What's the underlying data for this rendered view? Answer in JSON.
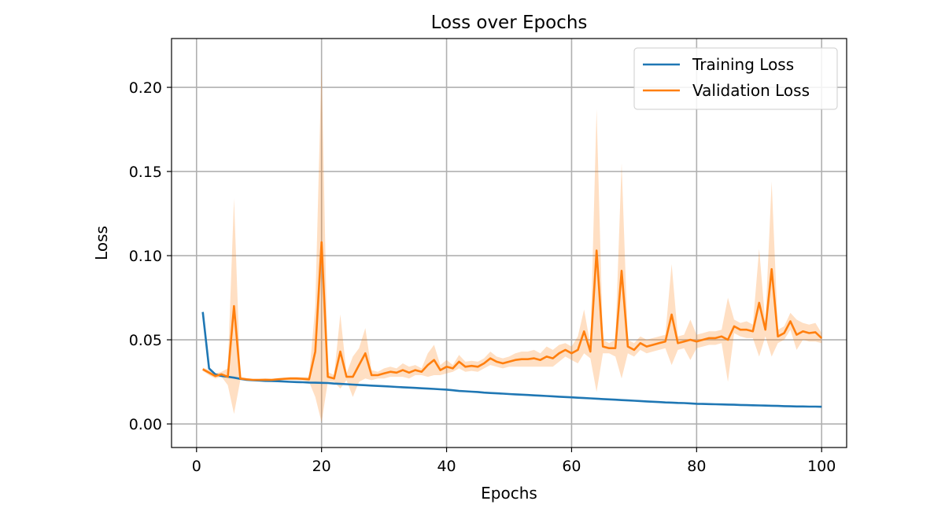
{
  "chart_data": {
    "type": "line",
    "title": "Loss over Epochs",
    "xlabel": "Epochs",
    "ylabel": "Loss",
    "xlim": [
      -4,
      104
    ],
    "ylim": [
      -0.014,
      0.229
    ],
    "xticks": [
      0,
      20,
      40,
      60,
      80,
      100
    ],
    "xtick_labels": [
      "0",
      "20",
      "40",
      "60",
      "80",
      "100"
    ],
    "yticks": [
      0.0,
      0.05,
      0.1,
      0.15,
      0.2
    ],
    "ytick_labels": [
      "0.00",
      "0.05",
      "0.10",
      "0.15",
      "0.20"
    ],
    "grid": true,
    "legend": "top-right",
    "x": [
      1,
      2,
      3,
      4,
      5,
      6,
      7,
      8,
      9,
      10,
      11,
      12,
      13,
      14,
      15,
      16,
      17,
      18,
      19,
      20,
      21,
      22,
      23,
      24,
      25,
      26,
      27,
      28,
      29,
      30,
      31,
      32,
      33,
      34,
      35,
      36,
      37,
      38,
      39,
      40,
      41,
      42,
      43,
      44,
      45,
      46,
      47,
      48,
      49,
      50,
      51,
      52,
      53,
      54,
      55,
      56,
      57,
      58,
      59,
      60,
      61,
      62,
      63,
      64,
      65,
      66,
      67,
      68,
      69,
      70,
      71,
      72,
      73,
      74,
      75,
      76,
      77,
      78,
      79,
      80,
      81,
      82,
      83,
      84,
      85,
      86,
      87,
      88,
      89,
      90,
      91,
      92,
      93,
      94,
      95,
      96,
      97,
      98,
      99,
      100
    ],
    "series": [
      {
        "name": "Training Loss",
        "color": "#1f77b4",
        "values": [
          0.0665,
          0.033,
          0.0295,
          0.0285,
          0.028,
          0.0275,
          0.0268,
          0.0262,
          0.026,
          0.0258,
          0.0256,
          0.0255,
          0.0254,
          0.0252,
          0.025,
          0.0249,
          0.0248,
          0.0246,
          0.0245,
          0.0244,
          0.0243,
          0.024,
          0.0238,
          0.0236,
          0.0234,
          0.0232,
          0.023,
          0.0228,
          0.0226,
          0.0224,
          0.0222,
          0.022,
          0.0218,
          0.0216,
          0.0214,
          0.0212,
          0.021,
          0.0208,
          0.0206,
          0.0204,
          0.02,
          0.0196,
          0.0194,
          0.0192,
          0.019,
          0.0186,
          0.0184,
          0.0182,
          0.018,
          0.0178,
          0.0176,
          0.0174,
          0.0172,
          0.017,
          0.0168,
          0.0166,
          0.0164,
          0.0162,
          0.016,
          0.0158,
          0.0156,
          0.0154,
          0.0152,
          0.015,
          0.0148,
          0.0146,
          0.0144,
          0.0142,
          0.014,
          0.0138,
          0.0136,
          0.0134,
          0.0132,
          0.013,
          0.0128,
          0.0127,
          0.0125,
          0.0124,
          0.0122,
          0.012,
          0.0119,
          0.0118,
          0.0117,
          0.0116,
          0.0115,
          0.0114,
          0.0113,
          0.0112,
          0.0111,
          0.011,
          0.0109,
          0.0108,
          0.0107,
          0.0106,
          0.0105,
          0.0104,
          0.0104,
          0.0103,
          0.0103,
          0.0102
        ]
      },
      {
        "name": "Validation Loss",
        "color": "#ff7f0e",
        "values": [
          0.0325,
          0.0305,
          0.0285,
          0.0295,
          0.028,
          0.07,
          0.027,
          0.0265,
          0.0262,
          0.0262,
          0.0263,
          0.0262,
          0.0265,
          0.0268,
          0.027,
          0.027,
          0.0268,
          0.0265,
          0.043,
          0.108,
          0.028,
          0.027,
          0.043,
          0.028,
          0.028,
          0.035,
          0.042,
          0.029,
          0.029,
          0.03,
          0.031,
          0.0305,
          0.032,
          0.0305,
          0.032,
          0.031,
          0.035,
          0.038,
          0.032,
          0.034,
          0.033,
          0.037,
          0.034,
          0.0345,
          0.034,
          0.036,
          0.039,
          0.037,
          0.036,
          0.037,
          0.038,
          0.0385,
          0.0385,
          0.039,
          0.038,
          0.04,
          0.039,
          0.042,
          0.044,
          0.042,
          0.044,
          0.055,
          0.043,
          0.103,
          0.046,
          0.045,
          0.045,
          0.091,
          0.046,
          0.044,
          0.048,
          0.046,
          0.047,
          0.048,
          0.049,
          0.065,
          0.048,
          0.049,
          0.05,
          0.049,
          0.05,
          0.051,
          0.051,
          0.052,
          0.05,
          0.058,
          0.056,
          0.056,
          0.055,
          0.072,
          0.056,
          0.092,
          0.052,
          0.054,
          0.061,
          0.053,
          0.055,
          0.054,
          0.0545,
          0.051
        ]
      }
    ],
    "validation_band": {
      "color": "#ff7f0e",
      "opacity": 0.25,
      "upper": [
        0.0335,
        0.032,
        0.03,
        0.031,
        0.033,
        0.134,
        0.028,
        0.0272,
        0.0268,
        0.0268,
        0.0268,
        0.0268,
        0.0272,
        0.0275,
        0.028,
        0.028,
        0.0278,
        0.028,
        0.07,
        0.214,
        0.031,
        0.029,
        0.065,
        0.03,
        0.04,
        0.045,
        0.057,
        0.032,
        0.031,
        0.033,
        0.034,
        0.033,
        0.036,
        0.034,
        0.035,
        0.033,
        0.042,
        0.047,
        0.035,
        0.038,
        0.035,
        0.041,
        0.037,
        0.0375,
        0.037,
        0.039,
        0.043,
        0.04,
        0.039,
        0.04,
        0.042,
        0.043,
        0.043,
        0.044,
        0.042,
        0.046,
        0.044,
        0.047,
        0.048,
        0.046,
        0.052,
        0.068,
        0.047,
        0.187,
        0.05,
        0.048,
        0.05,
        0.155,
        0.05,
        0.048,
        0.052,
        0.05,
        0.051,
        0.052,
        0.053,
        0.095,
        0.052,
        0.053,
        0.062,
        0.053,
        0.054,
        0.055,
        0.055,
        0.056,
        0.075,
        0.062,
        0.06,
        0.061,
        0.059,
        0.104,
        0.06,
        0.144,
        0.056,
        0.058,
        0.066,
        0.062,
        0.06,
        0.059,
        0.06,
        0.054
      ],
      "lower": [
        0.0315,
        0.029,
        0.027,
        0.028,
        0.023,
        0.006,
        0.026,
        0.0258,
        0.0256,
        0.0256,
        0.0258,
        0.0256,
        0.0258,
        0.0261,
        0.026,
        0.026,
        0.0258,
        0.025,
        0.016,
        0.001,
        0.025,
        0.025,
        0.021,
        0.026,
        0.016,
        0.025,
        0.027,
        0.026,
        0.027,
        0.027,
        0.028,
        0.028,
        0.028,
        0.027,
        0.029,
        0.029,
        0.028,
        0.029,
        0.029,
        0.03,
        0.031,
        0.033,
        0.031,
        0.0315,
        0.031,
        0.033,
        0.035,
        0.034,
        0.033,
        0.034,
        0.034,
        0.034,
        0.034,
        0.034,
        0.034,
        0.034,
        0.034,
        0.037,
        0.04,
        0.038,
        0.036,
        0.042,
        0.039,
        0.019,
        0.042,
        0.042,
        0.04,
        0.027,
        0.042,
        0.04,
        0.044,
        0.042,
        0.043,
        0.044,
        0.045,
        0.035,
        0.044,
        0.045,
        0.038,
        0.045,
        0.046,
        0.047,
        0.047,
        0.048,
        0.025,
        0.054,
        0.052,
        0.051,
        0.051,
        0.04,
        0.052,
        0.04,
        0.048,
        0.05,
        0.056,
        0.044,
        0.05,
        0.049,
        0.049,
        0.048
      ]
    }
  }
}
